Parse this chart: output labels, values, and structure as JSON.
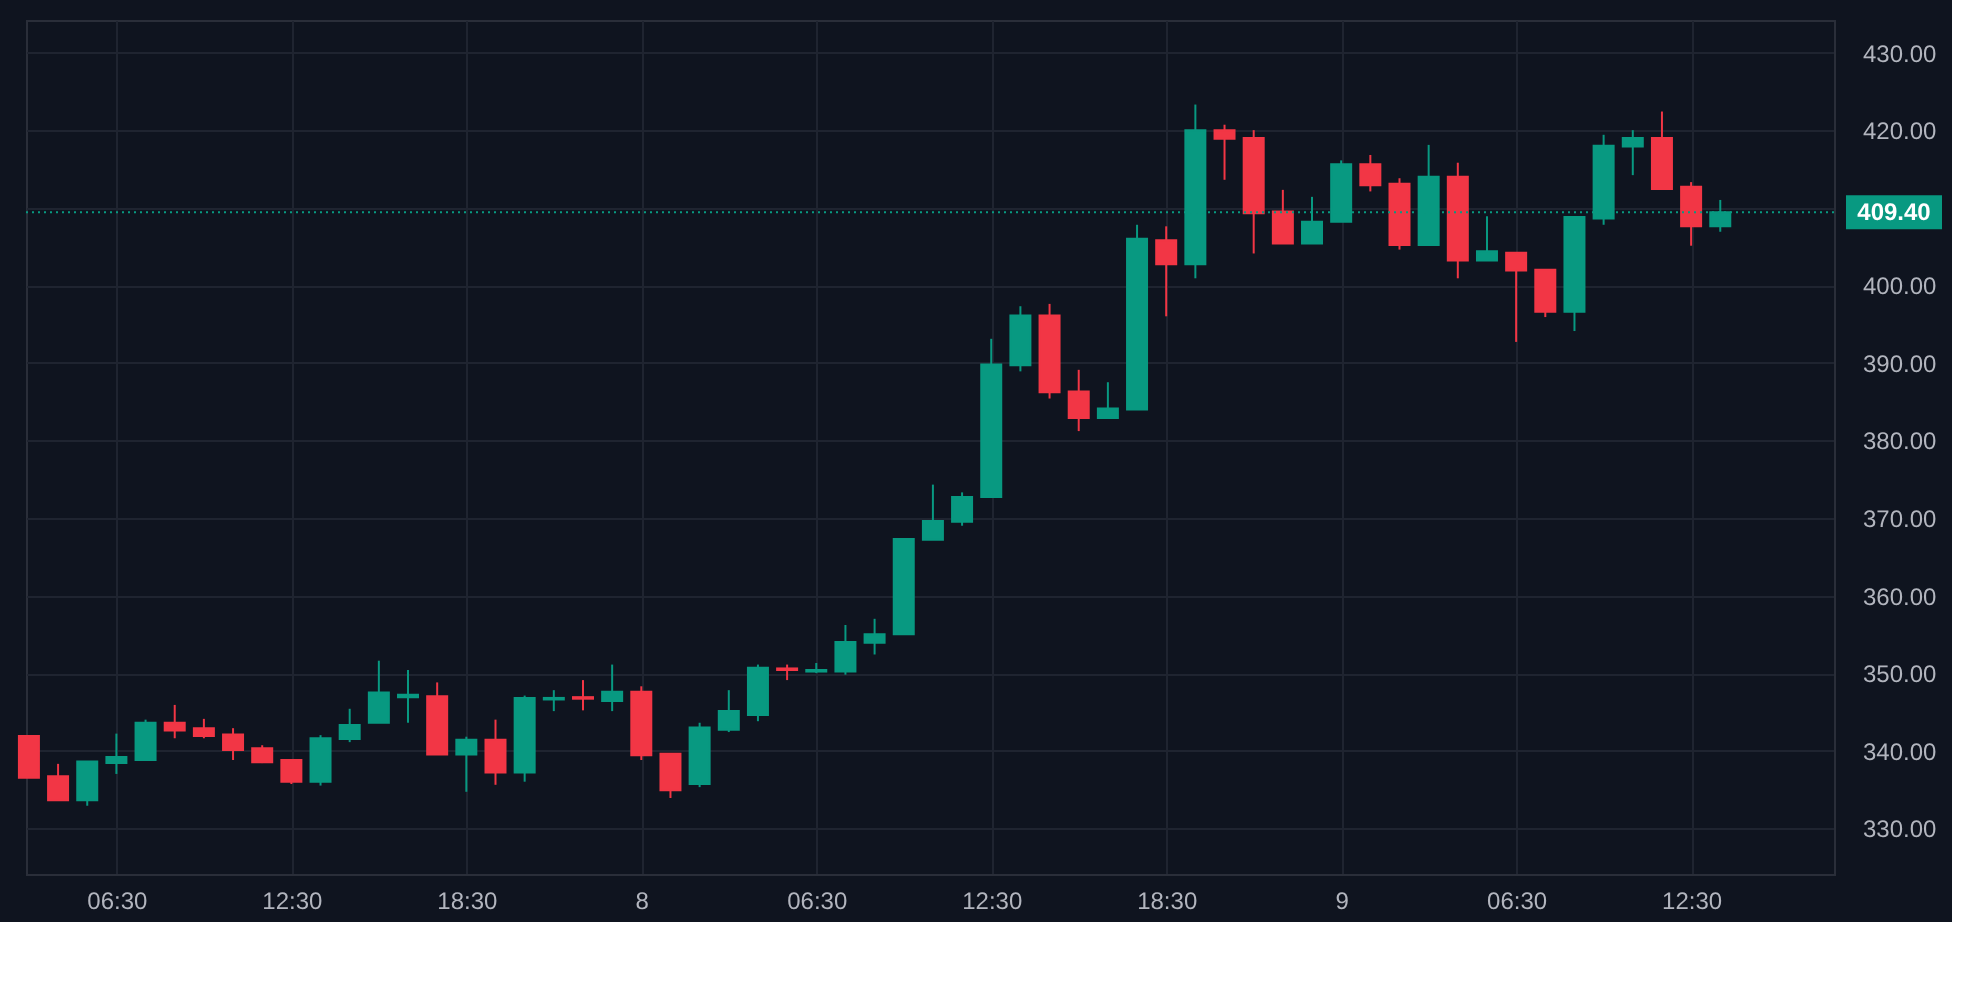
{
  "chart_data": {
    "type": "candlestick",
    "categories": [
      null,
      null,
      null,
      "06:30",
      null,
      null,
      null,
      null,
      null,
      "12:30",
      null,
      null,
      null,
      null,
      null,
      "18:30",
      null,
      null,
      null,
      null,
      null,
      "8",
      null,
      null,
      null,
      null,
      null,
      "06:30",
      null,
      null,
      null,
      null,
      null,
      "12:30",
      null,
      null,
      null,
      null,
      null,
      "18:30",
      null,
      null,
      null,
      null,
      null,
      "9",
      null,
      null,
      null,
      null,
      null,
      "06:30",
      null,
      null,
      null,
      null,
      null,
      "12:30",
      null
    ],
    "ohlc": [
      [
        341.9,
        341.9,
        336.5,
        336.5
      ],
      [
        336.7,
        338.3,
        333.6,
        333.6
      ],
      [
        333.6,
        338.6,
        332.9,
        338.6
      ],
      [
        338.4,
        342.2,
        337.0,
        339.2
      ],
      [
        338.8,
        344.0,
        338.8,
        343.6
      ],
      [
        343.6,
        345.9,
        341.6,
        342.6
      ],
      [
        342.9,
        344.1,
        341.6,
        341.9
      ],
      [
        342.1,
        342.9,
        338.8,
        340.1
      ],
      [
        340.3,
        340.7,
        338.4,
        338.5
      ],
      [
        338.8,
        338.8,
        335.7,
        336.0
      ],
      [
        336.0,
        342.0,
        335.5,
        341.6
      ],
      [
        341.5,
        345.4,
        341.1,
        343.3
      ],
      [
        343.6,
        351.6,
        343.6,
        347.5
      ],
      [
        346.9,
        350.4,
        343.6,
        347.2
      ],
      [
        347.0,
        348.8,
        339.5,
        339.5
      ],
      [
        339.5,
        341.8,
        334.7,
        341.4
      ],
      [
        341.4,
        344.0,
        335.6,
        337.2
      ],
      [
        337.2,
        347.1,
        336.0,
        346.8
      ],
      [
        346.6,
        347.8,
        345.1,
        346.8
      ],
      [
        346.9,
        349.1,
        345.2,
        346.7
      ],
      [
        346.4,
        351.1,
        345.1,
        347.6
      ],
      [
        347.6,
        348.3,
        338.8,
        339.4
      ],
      [
        339.6,
        339.6,
        333.9,
        334.9
      ],
      [
        335.7,
        343.6,
        335.3,
        343.0
      ],
      [
        342.7,
        347.8,
        342.4,
        345.1
      ],
      [
        344.6,
        351.1,
        343.8,
        350.7
      ],
      [
        350.6,
        351.1,
        349.1,
        350.4
      ],
      [
        350.2,
        351.3,
        350.0,
        350.4
      ],
      [
        350.2,
        356.2,
        349.8,
        354.0
      ],
      [
        353.9,
        357.0,
        352.4,
        355.0
      ],
      [
        355.0,
        367.3,
        355.0,
        367.3
      ],
      [
        367.2,
        374.3,
        367.2,
        369.6
      ],
      [
        369.5,
        373.3,
        369.0,
        372.7
      ],
      [
        372.7,
        393.1,
        372.7,
        389.8
      ],
      [
        389.7,
        397.3,
        388.9,
        396.1
      ],
      [
        396.1,
        397.6,
        385.4,
        386.2
      ],
      [
        386.3,
        389.1,
        381.2,
        382.9
      ],
      [
        382.9,
        387.5,
        382.9,
        384.1
      ],
      [
        384.0,
        407.8,
        384.0,
        406.0
      ],
      [
        405.8,
        407.6,
        396.0,
        402.7
      ],
      [
        402.7,
        423.3,
        400.9,
        420.0
      ],
      [
        420.0,
        420.7,
        413.6,
        418.9
      ],
      [
        419.0,
        420.0,
        404.1,
        409.3
      ],
      [
        409.5,
        412.3,
        405.4,
        405.4
      ],
      [
        405.4,
        411.4,
        405.4,
        408.2
      ],
      [
        408.2,
        416.1,
        408.2,
        415.6
      ],
      [
        415.6,
        416.8,
        412.1,
        412.9
      ],
      [
        413.1,
        413.8,
        404.6,
        405.2
      ],
      [
        405.2,
        418.1,
        405.2,
        414.0
      ],
      [
        414.0,
        415.8,
        400.9,
        403.2
      ],
      [
        403.2,
        408.9,
        403.2,
        404.4
      ],
      [
        404.2,
        404.2,
        392.7,
        401.9
      ],
      [
        402.0,
        402.0,
        395.9,
        396.6
      ],
      [
        396.6,
        408.8,
        394.1,
        408.8
      ],
      [
        408.6,
        419.4,
        407.8,
        418.0
      ],
      [
        417.9,
        420.0,
        414.2,
        419.0
      ],
      [
        419.0,
        422.4,
        412.4,
        412.4
      ],
      [
        412.7,
        413.3,
        405.1,
        407.6
      ],
      [
        407.6,
        411.0,
        406.9,
        409.4
      ]
    ],
    "colors": [
      "#f23645",
      "#f23645",
      "#089981",
      "#089981",
      "#089981",
      "#f23645",
      "#f23645",
      "#f23645",
      "#f23645",
      "#f23645",
      "#089981",
      "#089981",
      "#089981",
      "#089981",
      "#f23645",
      "#089981",
      "#f23645",
      "#089981",
      "#089981",
      "#f23645",
      "#089981",
      "#f23645",
      "#f23645",
      "#089981",
      "#089981",
      "#089981",
      "#f23645",
      "#089981",
      "#089981",
      "#089981",
      "#089981",
      "#089981",
      "#089981",
      "#089981",
      "#089981",
      "#f23645",
      "#f23645",
      "#089981",
      "#089981",
      "#f23645",
      "#089981",
      "#f23645",
      "#f23645",
      "#f23645",
      "#089981",
      "#089981",
      "#f23645",
      "#f23645",
      "#089981",
      "#f23645",
      "#089981",
      "#f23645",
      "#f23645",
      "#089981",
      "#089981",
      "#089981",
      "#f23645",
      "#f23645",
      "#089981"
    ],
    "ylim": [
      324.1,
      434.2
    ],
    "yticks": [
      {
        "value": 330,
        "label": "330.00"
      },
      {
        "value": 340,
        "label": "340.00"
      },
      {
        "value": 350,
        "label": "350.00"
      },
      {
        "value": 360,
        "label": "360.00"
      },
      {
        "value": 370,
        "label": "370.00"
      },
      {
        "value": 380,
        "label": "380.00"
      },
      {
        "value": 390,
        "label": "390.00"
      },
      {
        "value": 400,
        "label": "400.00"
      },
      {
        "value": 410,
        "label": null
      },
      {
        "value": 420,
        "label": "420.00"
      },
      {
        "value": 430,
        "label": "430.00"
      }
    ],
    "grid": true,
    "ref_lines": [
      {
        "axis": "y",
        "value": 409.4,
        "label": "409.40",
        "color": "#089981",
        "line_style": "dotted"
      }
    ]
  }
}
